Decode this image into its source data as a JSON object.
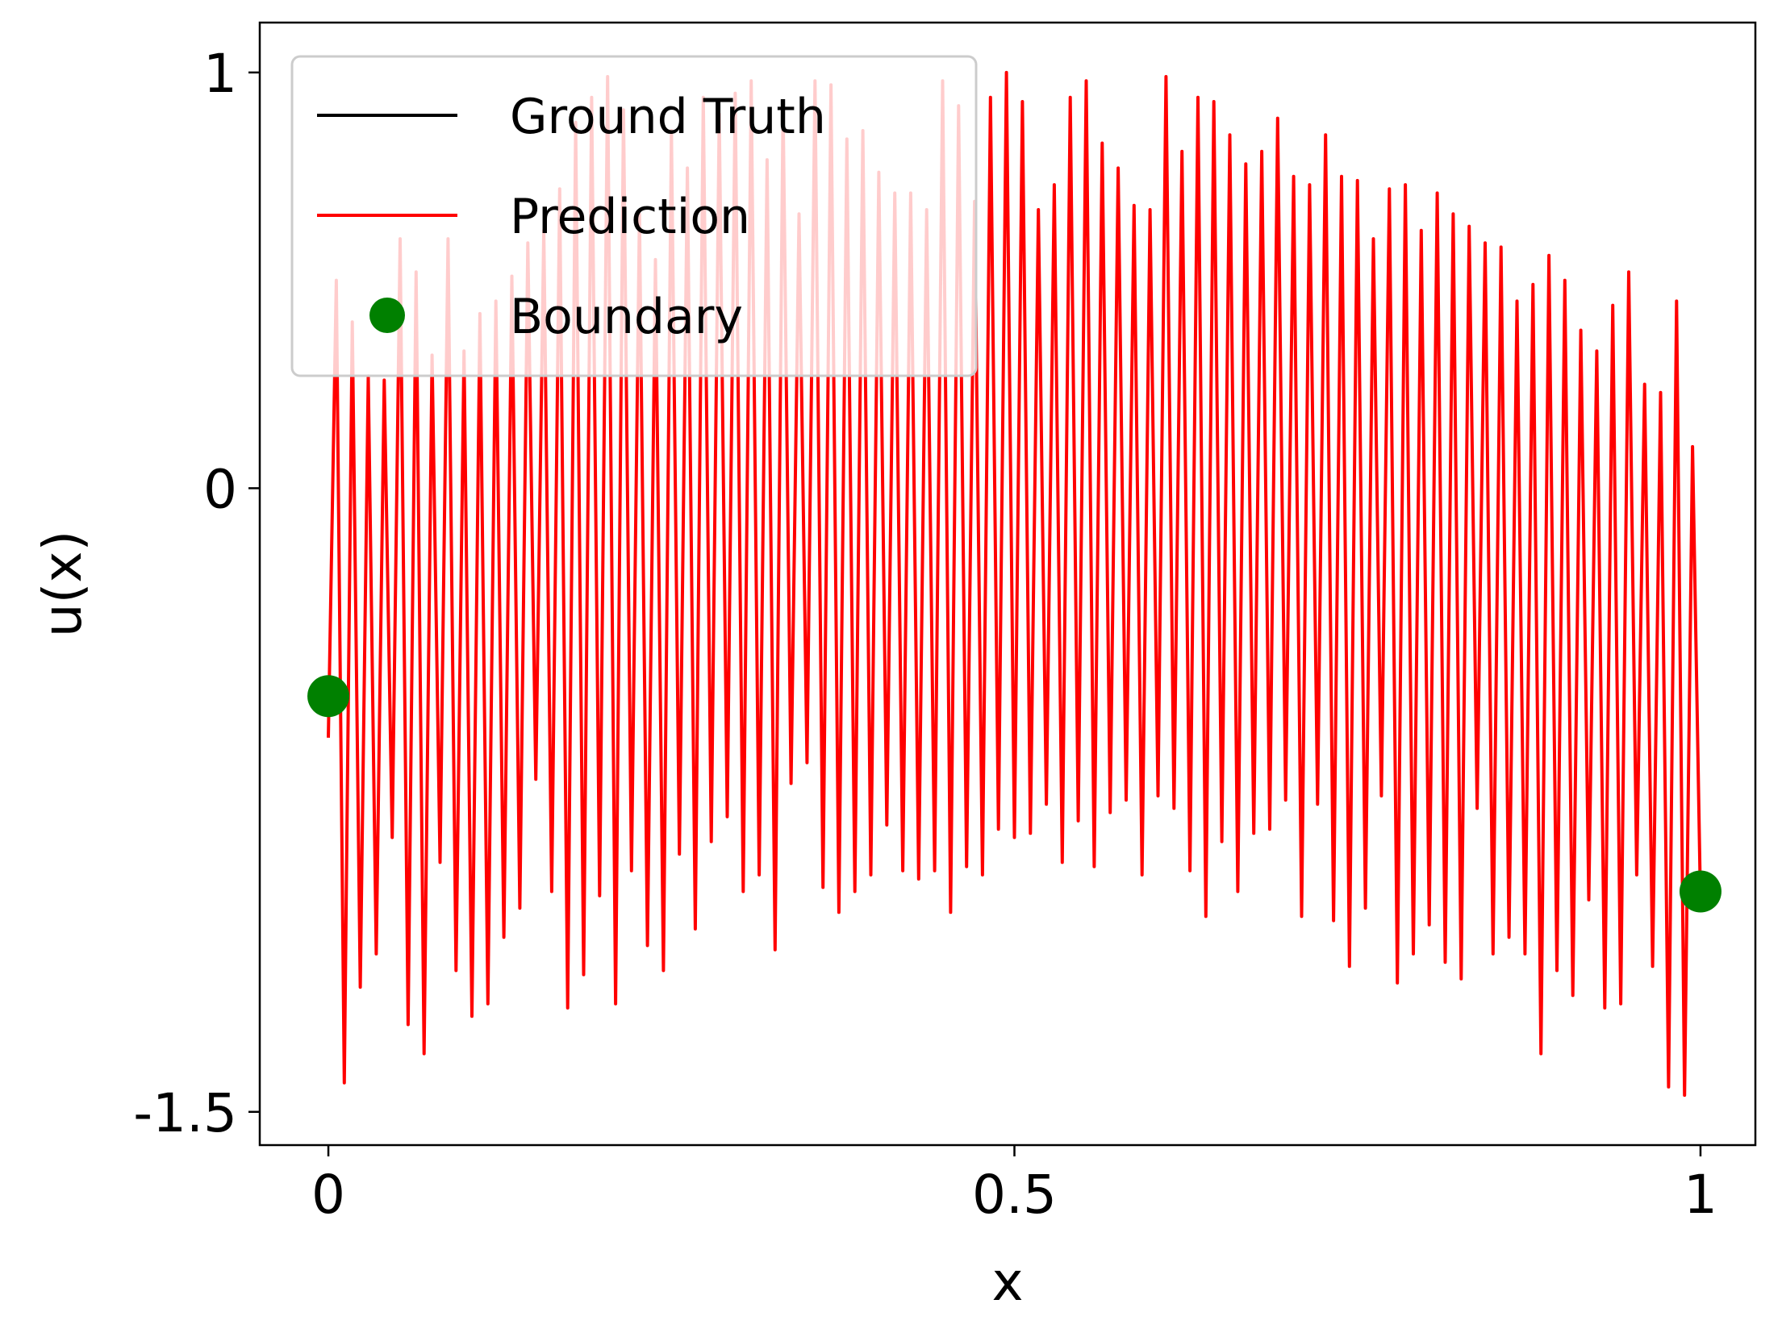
{
  "chart_data": {
    "type": "line",
    "title": "",
    "xlabel": "x",
    "ylabel": "u(x)",
    "xlim": [
      -0.05,
      1.04
    ],
    "ylim": [
      -1.58,
      1.12
    ],
    "xticks": [
      0,
      0.5,
      1
    ],
    "xtick_labels": [
      "0",
      "0.5",
      "1"
    ],
    "yticks": [
      -1.5,
      0,
      1
    ],
    "ytick_labels": [
      "-1.5",
      "0",
      "1"
    ],
    "grid": false,
    "legend_position": "upper-left",
    "series": [
      {
        "name": "Ground Truth",
        "color": "#000000",
        "kind": "line",
        "x": [],
        "y": []
      },
      {
        "name": "Prediction",
        "color": "#ff0000",
        "kind": "line",
        "x_range": [
          0,
          1
        ],
        "peaks_y": [
          0.5,
          0.4,
          0.27,
          0.26,
          0.6,
          0.52,
          0.32,
          0.6,
          0.33,
          0.42,
          0.45,
          0.51,
          0.59,
          0.62,
          0.72,
          0.88,
          0.94,
          0.99,
          0.91,
          0.66,
          0.55,
          0.86,
          0.77,
          0.94,
          0.9,
          0.95,
          0.98,
          0.79,
          0.92,
          0.66,
          0.98,
          0.97,
          0.84,
          0.86,
          0.76,
          0.71,
          0.71,
          0.67,
          0.98,
          0.92,
          0.69,
          0.94,
          1.0,
          0.93,
          0.67,
          0.73,
          0.94,
          0.98,
          0.83,
          0.77,
          0.68,
          0.67,
          0.99,
          0.81,
          0.94,
          0.93,
          0.85,
          0.78,
          0.81,
          0.89,
          0.75,
          0.73,
          0.85,
          0.75,
          0.74,
          0.6,
          0.72,
          0.73,
          0.62,
          0.71,
          0.66,
          0.63,
          0.59,
          0.58,
          0.45,
          0.49,
          0.56,
          0.5,
          0.38,
          0.33,
          0.44,
          0.52,
          0.25,
          0.23,
          0.45,
          0.1
        ],
        "troughs_y": [
          -0.6,
          -1.43,
          -1.2,
          -1.12,
          -0.84,
          -1.29,
          -1.36,
          -0.9,
          -1.16,
          -1.27,
          -1.24,
          -1.08,
          -1.01,
          -0.7,
          -0.97,
          -1.25,
          -1.17,
          -0.98,
          -1.24,
          -0.92,
          -1.1,
          -1.16,
          -0.88,
          -1.06,
          -0.85,
          -0.79,
          -0.97,
          -0.93,
          -1.11,
          -0.71,
          -0.66,
          -0.96,
          -1.02,
          -0.97,
          -0.93,
          -0.81,
          -0.92,
          -0.94,
          -0.92,
          -1.02,
          -0.91,
          -0.93,
          -0.82,
          -0.84,
          -0.83,
          -0.76,
          -0.9,
          -0.8,
          -0.91,
          -0.78,
          -0.75,
          -0.93,
          -0.74,
          -0.77,
          -0.92,
          -1.03,
          -0.85,
          -0.97,
          -0.83,
          -0.82,
          -0.75,
          -1.03,
          -0.76,
          -1.04,
          -1.15,
          -1.01,
          -0.74,
          -1.19,
          -1.12,
          -1.05,
          -1.14,
          -1.18,
          -0.77,
          -1.12,
          -1.08,
          -1.12,
          -1.36,
          -1.16,
          -1.22,
          -0.99,
          -1.25,
          -1.24,
          -0.93,
          -1.15,
          -1.44,
          -1.46,
          -1.0
        ]
      },
      {
        "name": "Boundary",
        "color": "#008000",
        "kind": "scatter",
        "x": [
          0,
          1
        ],
        "y": [
          -0.5,
          -0.97
        ]
      }
    ]
  }
}
